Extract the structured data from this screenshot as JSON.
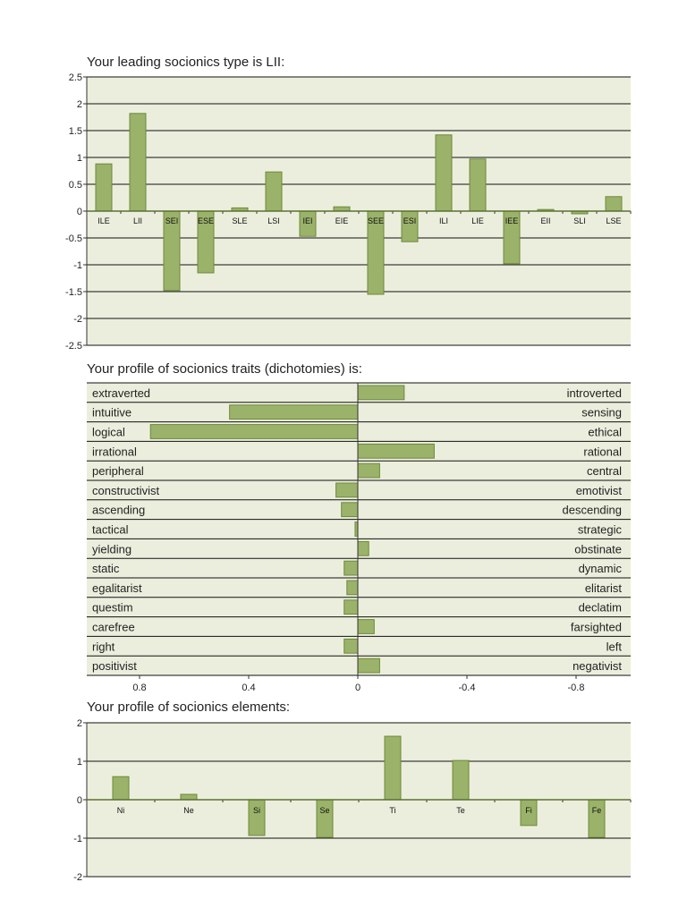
{
  "colors": {
    "plot_bg": "#eceedd",
    "bar": "#9bb26a",
    "bar_border": "#6b8a3a",
    "grid": "#111111"
  },
  "chart_data": [
    {
      "type": "bar",
      "title": "Your leading socionics type is LII:",
      "ylim": [
        -2.5,
        2.5
      ],
      "yticks": [
        "2.5",
        "2",
        "1.5",
        "1",
        "0.5",
        "0",
        "-0.5",
        "-1",
        "-1.5",
        "-2",
        "-2.5"
      ],
      "grid": true,
      "categories": [
        "ILE",
        "LII",
        "SEI",
        "ESE",
        "SLE",
        "LSI",
        "IEI",
        "EIE",
        "SEE",
        "ESI",
        "ILI",
        "LIE",
        "IEE",
        "EII",
        "SLI",
        "LSE"
      ],
      "values": [
        0.88,
        1.82,
        -1.48,
        -1.15,
        0.06,
        0.73,
        -0.47,
        0.08,
        -1.55,
        -0.57,
        1.42,
        0.97,
        -0.98,
        0.03,
        -0.05,
        0.27
      ]
    },
    {
      "type": "bar",
      "orientation": "horizontal",
      "title": "Your profile of socionics traits (dichotomies) is:",
      "xlim": [
        1,
        -1
      ],
      "xticks": [
        "0.8",
        "0.4",
        "0",
        "-0.4",
        "-0.8"
      ],
      "left_labels": [
        "extraverted",
        "intuitive",
        "logical",
        "irrational",
        "peripheral",
        "constructivist",
        "ascending",
        "tactical",
        "yielding",
        "static",
        "egalitarist",
        "questim",
        "carefree",
        "right",
        "positivist"
      ],
      "right_labels": [
        "introverted",
        "sensing",
        "ethical",
        "rational",
        "central",
        "emotivist",
        "descending",
        "strategic",
        "obstinate",
        "dynamic",
        "elitarist",
        "declatim",
        "farsighted",
        "left",
        "negativist"
      ],
      "values": [
        -0.17,
        0.47,
        0.76,
        -0.28,
        -0.08,
        0.08,
        0.06,
        0.01,
        -0.04,
        0.05,
        0.04,
        0.05,
        -0.06,
        0.05,
        -0.08
      ]
    },
    {
      "type": "bar",
      "title": "Your profile of socionics elements:",
      "ylim": [
        -2,
        2
      ],
      "yticks": [
        "2",
        "1",
        "0",
        "-1",
        "-2"
      ],
      "grid": true,
      "categories": [
        "Ni",
        "Ne",
        "Si",
        "Se",
        "Ti",
        "Te",
        "Fi",
        "Fe"
      ],
      "values": [
        0.6,
        0.14,
        -0.93,
        -0.98,
        1.65,
        1.02,
        -0.67,
        -0.98
      ]
    }
  ]
}
